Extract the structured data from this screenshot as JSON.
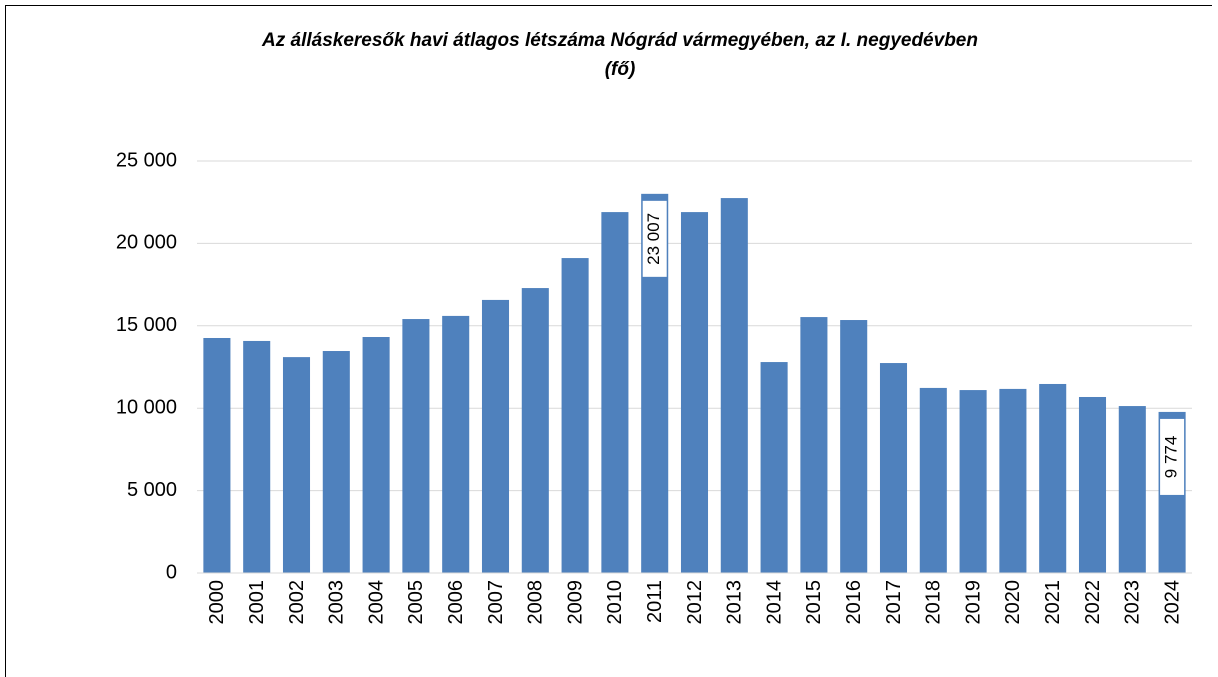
{
  "chart_data": {
    "type": "bar",
    "title": "Az álláskeresők havi átlagos létszáma Nógrád vármegyében, az I. negyedévben",
    "subtitle": "(fő)",
    "categories": [
      "2000",
      "2001",
      "2002",
      "2003",
      "2004",
      "2005",
      "2006",
      "2007",
      "2008",
      "2009",
      "2010",
      "2011",
      "2012",
      "2013",
      "2014",
      "2015",
      "2016",
      "2017",
      "2018",
      "2019",
      "2020",
      "2021",
      "2022",
      "2023",
      "2024"
    ],
    "values": [
      14260,
      14080,
      13100,
      13470,
      14320,
      15410,
      15600,
      16570,
      17290,
      19110,
      21900,
      23007,
      21900,
      22750,
      12800,
      15530,
      15350,
      12740,
      11230,
      11100,
      11170,
      11470,
      10680,
      10130,
      9774
    ],
    "value_labels": [
      null,
      null,
      null,
      null,
      null,
      null,
      null,
      null,
      null,
      null,
      null,
      "23 007",
      null,
      null,
      null,
      null,
      null,
      null,
      null,
      null,
      null,
      null,
      null,
      null,
      "9 774"
    ],
    "color": "#4f81bd",
    "ylim": [
      0,
      25000
    ],
    "yticks": [
      0,
      {
        "value": 5000,
        "label": "5 000"
      },
      {
        "value": 10000,
        "label": "10 000"
      },
      {
        "value": 15000,
        "label": "15 000"
      },
      {
        "value": 20000,
        "label": "20 000"
      },
      {
        "value": 25000,
        "label": "25 000"
      }
    ],
    "grid": true
  }
}
